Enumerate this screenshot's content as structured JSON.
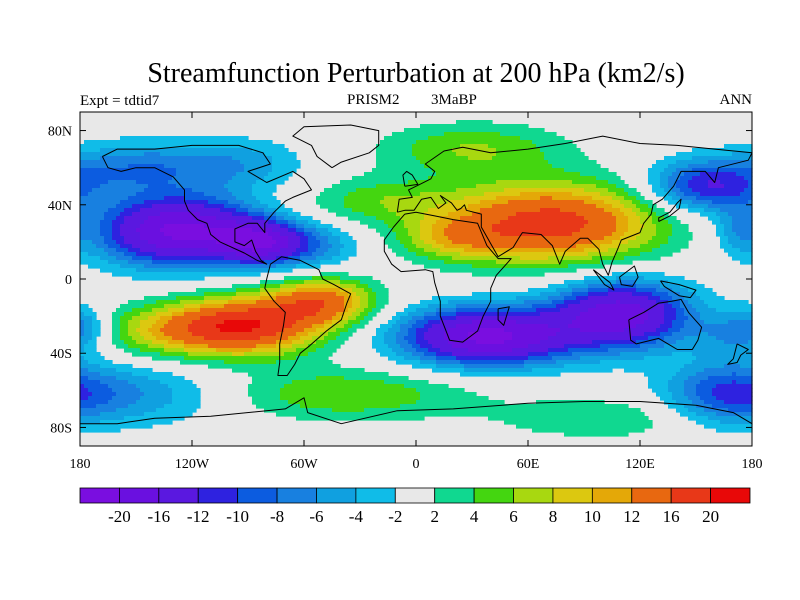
{
  "chart_data": {
    "type": "heatmap",
    "title": "Streamfunction Perturbation at 200 hPa (km2/s)",
    "left_label": "Expt = tdtid7",
    "center_label_1": "PRISM2",
    "center_label_2": "3MaBP",
    "right_label": "ANN",
    "x_ticks": [
      {
        "label": "180",
        "lon": -180
      },
      {
        "label": "120W",
        "lon": -120
      },
      {
        "label": "60W",
        "lon": -60
      },
      {
        "label": "0",
        "lon": 0
      },
      {
        "label": "60E",
        "lon": 60
      },
      {
        "label": "120E",
        "lon": 120
      },
      {
        "label": "180",
        "lon": 180
      }
    ],
    "y_ticks": [
      {
        "label": "80N",
        "lat": 80
      },
      {
        "label": "40N",
        "lat": 40
      },
      {
        "label": "0",
        "lat": 0
      },
      {
        "label": "40S",
        "lat": -40
      },
      {
        "label": "80S",
        "lat": -80
      }
    ],
    "xlim": [
      -180,
      180
    ],
    "ylim": [
      -90,
      90
    ],
    "colorbar": {
      "colors": [
        "#7a0ee0",
        "#6a10e0",
        "#5a18e0",
        "#2e22e0",
        "#0c5ce0",
        "#1880e0",
        "#10a0e0",
        "#10bce8",
        "#e8e8e8",
        "#10d890",
        "#44d610",
        "#a8d810",
        "#dcc810",
        "#e4a808",
        "#e86810",
        "#e83818",
        "#e80808"
      ],
      "labels": [
        "-20",
        "-16",
        "-12",
        "-10",
        "-8",
        "-6",
        "-4",
        "-2",
        "2",
        "4",
        "6",
        "8",
        "10",
        "12",
        "16",
        "20"
      ]
    },
    "centers": [
      {
        "lon": -127,
        "lat": 26,
        "amp": -21,
        "sx": 30,
        "sy": 13
      },
      {
        "lon": -85,
        "lat": 20,
        "amp": -13,
        "sx": 15,
        "sy": 8
      },
      {
        "lon": -60,
        "lat": 18,
        "amp": -7,
        "sx": 20,
        "sy": 9
      },
      {
        "lon": -150,
        "lat": 60,
        "amp": -7,
        "sx": 28,
        "sy": 10
      },
      {
        "lon": -95,
        "lat": 62,
        "amp": -5,
        "sx": 25,
        "sy": 10
      },
      {
        "lon": -152,
        "lat": -62,
        "amp": -6,
        "sx": 40,
        "sy": 12
      },
      {
        "lon": -178,
        "lat": -25,
        "amp": -5,
        "sx": 10,
        "sy": 8
      },
      {
        "lon": 38,
        "lat": -31,
        "amp": -21,
        "sx": 32,
        "sy": 11
      },
      {
        "lon": 110,
        "lat": -19,
        "amp": -18,
        "sx": 26,
        "sy": 13
      },
      {
        "lon": 155,
        "lat": 50,
        "amp": -12,
        "sx": 22,
        "sy": 10
      },
      {
        "lon": 165,
        "lat": -62,
        "amp": -8,
        "sx": 22,
        "sy": 12
      },
      {
        "lon": 170,
        "lat": -30,
        "amp": -5,
        "sx": 15,
        "sy": 9
      },
      {
        "lon": 172,
        "lat": 26,
        "amp": -4,
        "sx": 8,
        "sy": 10
      },
      {
        "lon": -90,
        "lat": -25,
        "amp": 17,
        "sx": 28,
        "sy": 11
      },
      {
        "lon": -50,
        "lat": -12,
        "amp": 13,
        "sx": 20,
        "sy": 9
      },
      {
        "lon": -130,
        "lat": -28,
        "amp": 8,
        "sx": 30,
        "sy": 10
      },
      {
        "lon": -20,
        "lat": 42,
        "amp": 5,
        "sx": 30,
        "sy": 9
      },
      {
        "lon": 30,
        "lat": 70,
        "amp": 6,
        "sx": 35,
        "sy": 10
      },
      {
        "lon": 72,
        "lat": 30,
        "amp": 18,
        "sx": 40,
        "sy": 15
      },
      {
        "lon": 20,
        "lat": 22,
        "amp": 6,
        "sx": 20,
        "sy": 8
      },
      {
        "lon": -40,
        "lat": -62,
        "amp": 6,
        "sx": 50,
        "sy": 10
      },
      {
        "lon": 100,
        "lat": -75,
        "amp": 4,
        "sx": 40,
        "sy": 8
      }
    ]
  }
}
